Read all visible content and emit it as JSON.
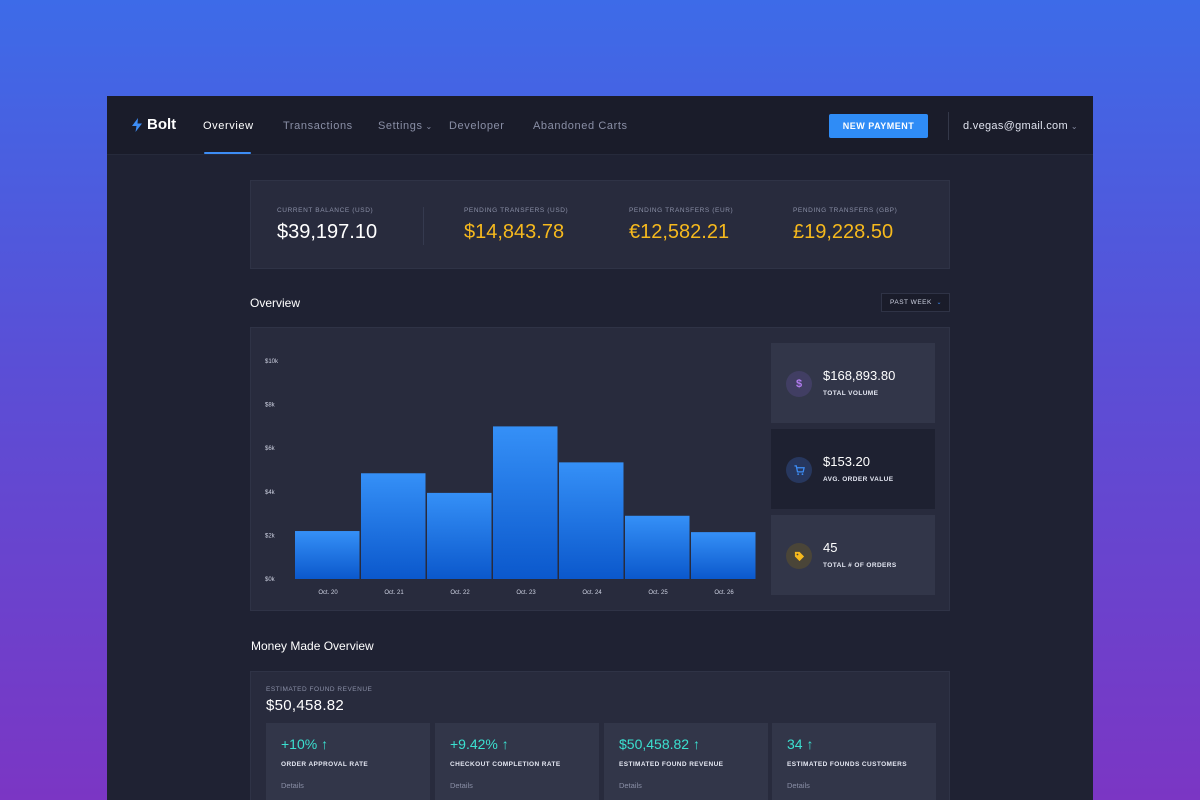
{
  "app": {
    "name": "Bolt"
  },
  "nav": {
    "items": [
      {
        "label": "Overview",
        "active": true
      },
      {
        "label": "Transactions"
      },
      {
        "label": "Settings",
        "has_dropdown": true
      },
      {
        "label": "Developer"
      },
      {
        "label": "Abandoned Carts"
      }
    ],
    "new_payment_label": "NEW PAYMENT",
    "user_email": "d.vegas@gmail.com"
  },
  "balances": [
    {
      "label": "CURRENT BALANCE (USD)",
      "value": "$39,197.10"
    },
    {
      "label": "PENDING TRANSFERS (USD)",
      "value": "$14,843.78"
    },
    {
      "label": "PENDING TRANSFERS (EUR)",
      "value": "€12,582.21"
    },
    {
      "label": "PENDING TRANSFERS (GBP)",
      "value": "£19,228.50"
    }
  ],
  "overview": {
    "title": "Overview",
    "range_label": "PAST WEEK"
  },
  "chart_data": {
    "type": "bar",
    "title": "",
    "xlabel": "",
    "ylabel": "",
    "categories": [
      "Oct. 20",
      "Oct. 21",
      "Oct. 22",
      "Oct. 23",
      "Oct. 24",
      "Oct. 25",
      "Oct. 26"
    ],
    "values": [
      2200,
      4850,
      3950,
      7000,
      5350,
      2900,
      2150
    ],
    "ylim": [
      0,
      10000
    ],
    "yticks": [
      0,
      2000,
      4000,
      6000,
      8000,
      10000
    ],
    "ytick_labels": [
      "$0k",
      "$2k",
      "$4k",
      "$6k",
      "$8k",
      "$10k"
    ],
    "grid": false,
    "bar_color_top": "#3590f7",
    "bar_color_bottom": "#0b58cc"
  },
  "stats": [
    {
      "icon": "dollar-icon",
      "glyph": "$",
      "value": "$168,893.80",
      "label": "TOTAL VOLUME",
      "icon_bg": "#413e63",
      "icon_color": "#b27cf0"
    },
    {
      "icon": "cart-icon",
      "glyph": "🛒",
      "value": "$153.20",
      "label": "AVG. ORDER VALUE",
      "icon_bg": "#27375e",
      "icon_color": "#3d8df5"
    },
    {
      "icon": "tag-icon",
      "glyph": "🏷",
      "value": "45",
      "label": "TOTAL # OF ORDERS",
      "icon_bg": "#4a4538",
      "icon_color": "#f6b91d"
    }
  ],
  "money": {
    "title": "Money Made Overview",
    "estimated_label": "ESTIMATED FOUND REVENUE",
    "estimated_value": "$50,458.82",
    "kpis": [
      {
        "value": "+10%",
        "label": "ORDER APPROVAL RATE",
        "link": "Details"
      },
      {
        "value": "+9.42%",
        "label": "CHECKOUT COMPLETION RATE",
        "link": "Details"
      },
      {
        "value": "$50,458.82",
        "label": "ESTIMATED FOUND REVENUE",
        "link": "Details"
      },
      {
        "value": "34",
        "label": "ESTIMATED FOUNDS CUSTOMERS",
        "link": "Details"
      }
    ],
    "arrow": "↑"
  },
  "colors": {
    "accent": "#2f8cf6",
    "gold": "#f6b91d",
    "teal": "#3be0d0"
  }
}
